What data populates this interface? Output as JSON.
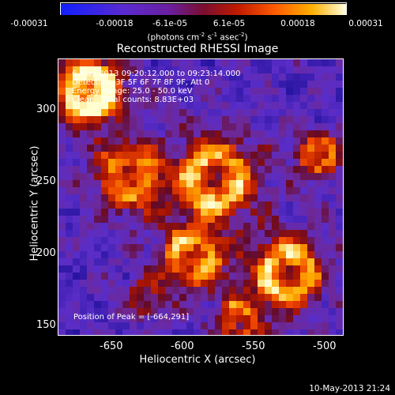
{
  "colorbar": {
    "ticks": [
      "-0.00031",
      "-0.00018",
      "-6.1e-05",
      "6.1e-05",
      "0.00018",
      "0.00031"
    ],
    "units_prefix": "(photons cm",
    "units_exp1": "-2",
    "units_mid": " s",
    "units_exp2": "-1",
    "units_mid2": " asec",
    "units_exp3": "-2",
    "units_suffix": ")"
  },
  "title": "Reconstructed RHESSI Image",
  "info": {
    "time_range": "6-May-2013 09:20:12.000 to 09:23:14.000",
    "detectors": "Detectors: 3F 5F 6F 7F 8F 9F, Att 0",
    "energy": "Energy Range: 25.0 - 50.0 keV",
    "clean": "Clean   Total counts: 8.83E+03",
    "peak": "Position of Peak = [-664,291]"
  },
  "axes": {
    "xlabel": "Heliocentric X (arcsec)",
    "ylabel": "Heliocentric Y (arcsec)",
    "xticks": [
      "-650",
      "-600",
      "-550",
      "-500"
    ],
    "yticks": [
      "300",
      "250",
      "200",
      "150"
    ]
  },
  "timestamp": "10-May-2013 21:24"
}
